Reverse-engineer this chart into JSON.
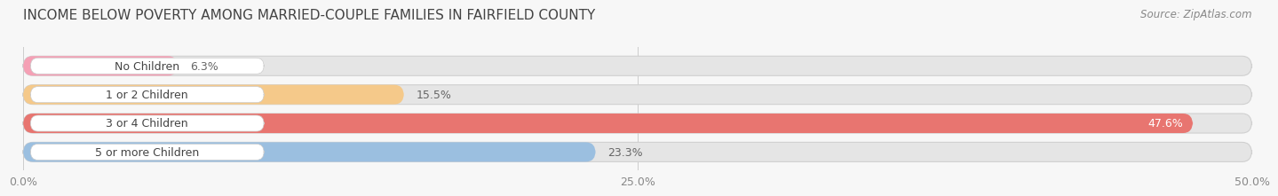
{
  "title": "INCOME BELOW POVERTY AMONG MARRIED-COUPLE FAMILIES IN FAIRFIELD COUNTY",
  "source": "Source: ZipAtlas.com",
  "categories": [
    "No Children",
    "1 or 2 Children",
    "3 or 4 Children",
    "5 or more Children"
  ],
  "values": [
    6.3,
    15.5,
    47.6,
    23.3
  ],
  "bar_colors": [
    "#f5a0b5",
    "#f5c98a",
    "#e87570",
    "#9bbfe0"
  ],
  "value_label_colors": [
    "#666666",
    "#666666",
    "#ffffff",
    "#666666"
  ],
  "xlim": [
    0,
    50.0
  ],
  "xticks": [
    0.0,
    25.0,
    50.0
  ],
  "xticklabels": [
    "0.0%",
    "25.0%",
    "50.0%"
  ],
  "background_color": "#f7f7f7",
  "bar_bg_color": "#e5e5e5",
  "title_fontsize": 11,
  "source_fontsize": 8.5,
  "label_fontsize": 9,
  "tick_fontsize": 9,
  "cat_fontsize": 9
}
